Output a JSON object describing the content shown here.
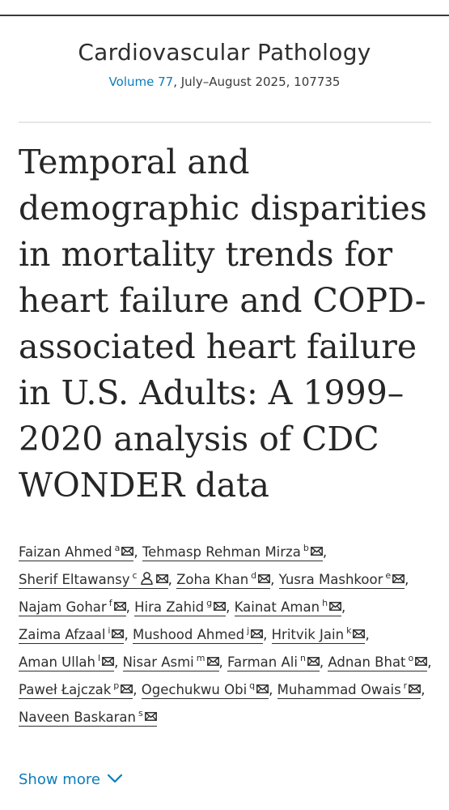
{
  "journal": {
    "name": "Cardiovascular Pathology",
    "volume_link": "Volume 77",
    "issue_rest": ", July–August 2025, 107735"
  },
  "article": {
    "title": "Temporal and demographic disparities in mortality trends for heart failure and COPD-associated heart failure in U.S. Adults: A 1999–2020 analysis of CDC WONDER data"
  },
  "authors": [
    {
      "name": "Faizan Ahmed",
      "aff": "a"
    },
    {
      "name": "Tehmasp Rehman Mirza",
      "aff": "b"
    },
    {
      "name": "Sherif Eltawansy",
      "aff": "c",
      "corresponding": true
    },
    {
      "name": "Zoha Khan",
      "aff": "d"
    },
    {
      "name": "Yusra Mashkoor",
      "aff": "e"
    },
    {
      "name": "Najam Gohar",
      "aff": "f"
    },
    {
      "name": "Hira Zahid",
      "aff": "g"
    },
    {
      "name": "Kainat Aman",
      "aff": "h"
    },
    {
      "name": "Zaima Afzaal",
      "aff": "i"
    },
    {
      "name": "Mushood Ahmed",
      "aff": "j"
    },
    {
      "name": "Hritvik Jain",
      "aff": "k"
    },
    {
      "name": "Aman Ullah",
      "aff": "l"
    },
    {
      "name": "Nisar Asmi",
      "aff": "m"
    },
    {
      "name": "Farman Ali",
      "aff": "n"
    },
    {
      "name": "Adnan Bhat",
      "aff": "o"
    },
    {
      "name": "Paweł Łajczak",
      "aff": "p"
    },
    {
      "name": "Ogechukwu Obi",
      "aff": "q"
    },
    {
      "name": "Muhammad Owais",
      "aff": "r"
    },
    {
      "name": "Naveen Baskaran",
      "aff": "s"
    }
  ],
  "icons": {
    "email": "envelope-icon",
    "corresponding": "person-icon",
    "expand": "chevron-down-icon"
  },
  "colors": {
    "link": "#0c7dbb",
    "text": "#262626"
  },
  "show_more": {
    "label": "Show more"
  }
}
